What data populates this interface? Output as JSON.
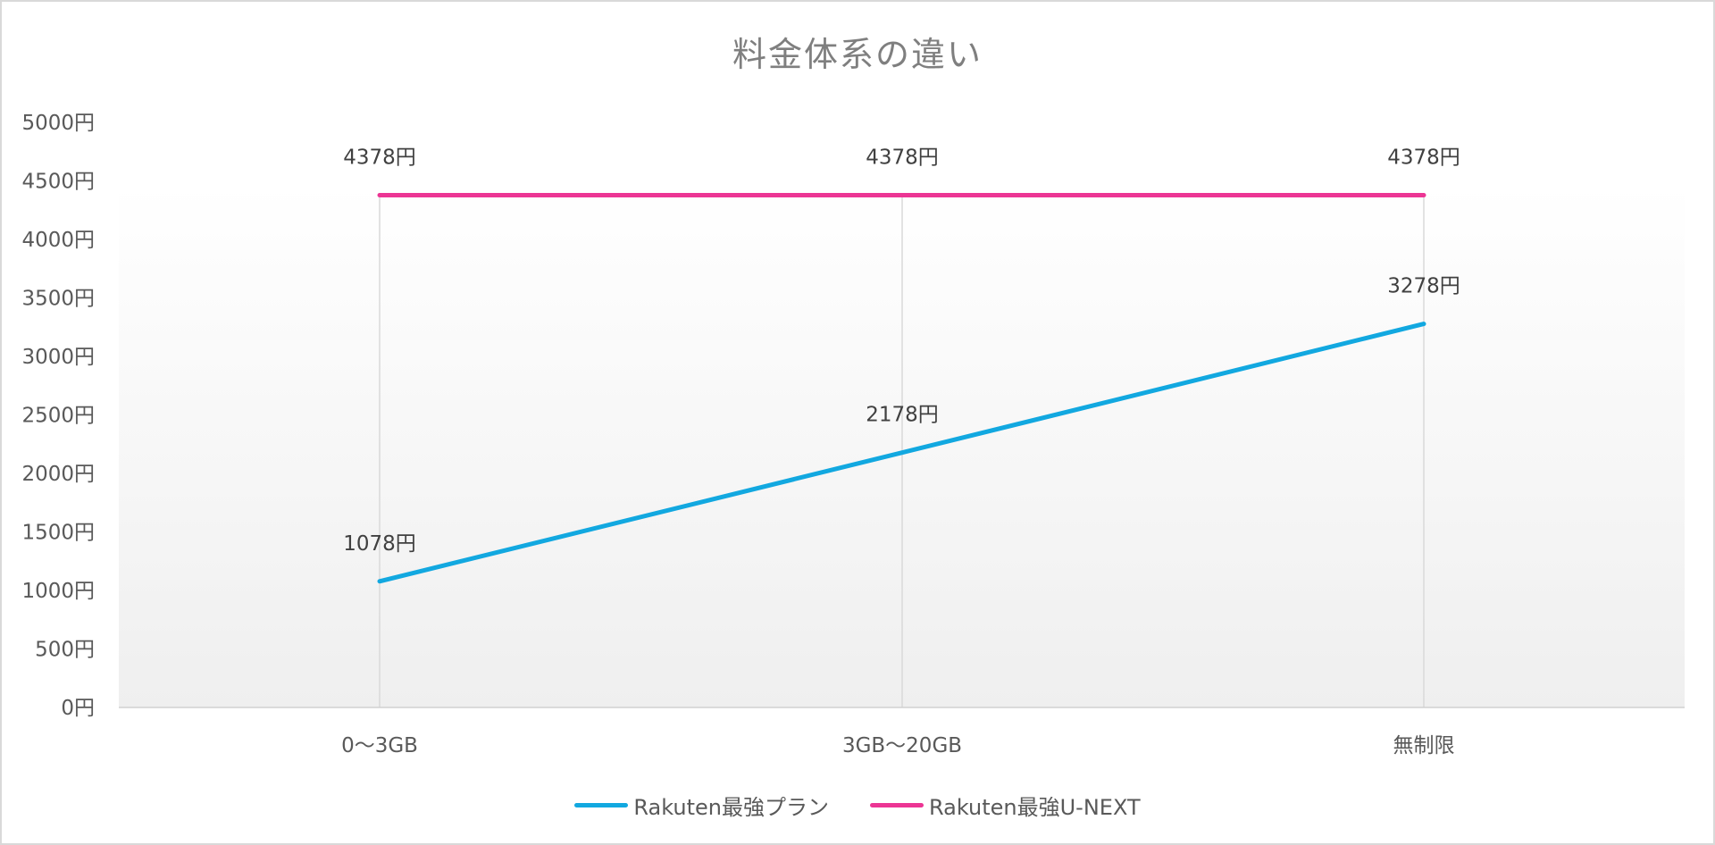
{
  "chart_data": {
    "type": "line",
    "title": "料金体系の違い",
    "xlabel": "",
    "ylabel": "",
    "categories": [
      "0〜3GB",
      "3GB〜20GB",
      "無制限"
    ],
    "series": [
      {
        "name": "Rakuten最強プラン",
        "values": [
          1078,
          2178,
          3278
        ],
        "color": "#12a8e0",
        "labels": [
          "1078円",
          "2178円",
          "3278円"
        ]
      },
      {
        "name": "Rakuten最強U-NEXT",
        "values": [
          4378,
          4378,
          4378
        ],
        "color": "#ec3594",
        "labels": [
          "4378円",
          "4378円",
          "4378円"
        ]
      }
    ],
    "ylim": [
      0,
      5000
    ],
    "yticks": [
      0,
      500,
      1000,
      1500,
      2000,
      2500,
      3000,
      3500,
      4000,
      4500,
      5000
    ],
    "ytick_labels": [
      "0円",
      "500円",
      "1000円",
      "1500円",
      "2000円",
      "2500円",
      "3000円",
      "3500円",
      "4000円",
      "4500円",
      "5000円"
    ],
    "grid": "vertical lines at categories",
    "legend_position": "bottom",
    "data_labels": true
  },
  "chart": {
    "title": "料金体系の違い",
    "legend": [
      {
        "label": "Rakuten最強プラン",
        "color": "#12a8e0"
      },
      {
        "label": "Rakuten最強U-NEXT",
        "color": "#ec3594"
      }
    ]
  }
}
